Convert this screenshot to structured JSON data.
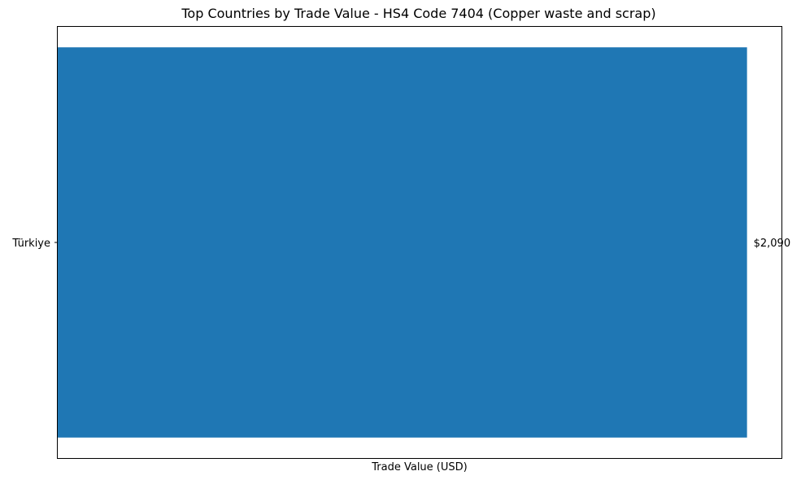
{
  "chart_data": {
    "type": "bar",
    "orientation": "horizontal",
    "title": "Top Countries by Trade Value - HS4 Code 7404 (Copper waste and scrap)",
    "xlabel": "Trade Value (USD)",
    "ylabel": "",
    "categories": [
      "Türkiye"
    ],
    "values": [
      2090
    ],
    "value_labels": [
      "$2,090"
    ],
    "bar_color": "#1f77b4",
    "xlim": [
      0,
      2194.5
    ],
    "x_ticks_shown": false,
    "grid": false,
    "legend": "none"
  }
}
